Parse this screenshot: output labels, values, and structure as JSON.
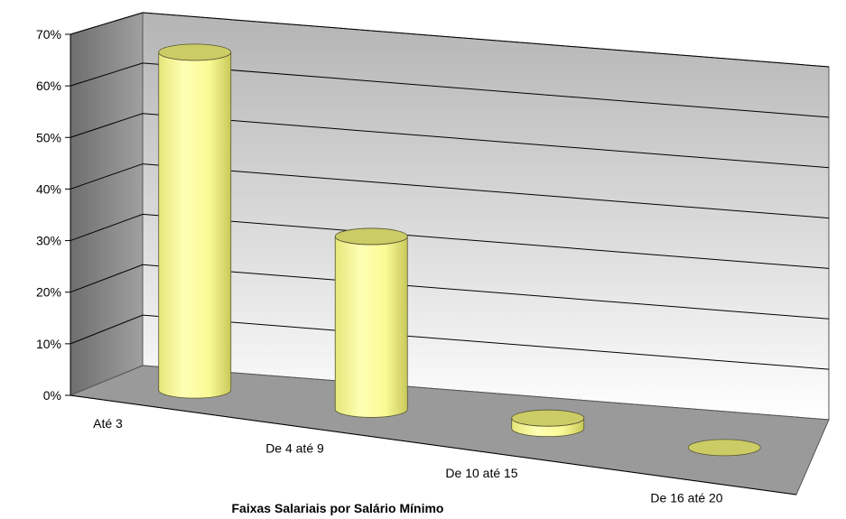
{
  "chart_data": {
    "type": "bar",
    "style": "3d-cylinder",
    "categories": [
      "Até 3",
      "De 4 até 9",
      "De 10 até 15",
      "De 16 até 20"
    ],
    "values": [
      65.5,
      33.5,
      2,
      0
    ],
    "ylim": [
      0,
      70
    ],
    "yticks": [
      "0%",
      "10%",
      "20%",
      "30%",
      "40%",
      "50%",
      "60%",
      "70%"
    ],
    "xlabel": "Faixas Salariais por Salário Mínimo",
    "ylabel": "",
    "title": "",
    "grid": true,
    "legend": "none",
    "colors": {
      "bar_body": "#ffff99",
      "bar_top": "#cccc66",
      "back_wall": "#f4f4f4",
      "side_wall": "#8c8c8c",
      "floor": "#9a9a9a",
      "gridline": "#000000"
    }
  }
}
